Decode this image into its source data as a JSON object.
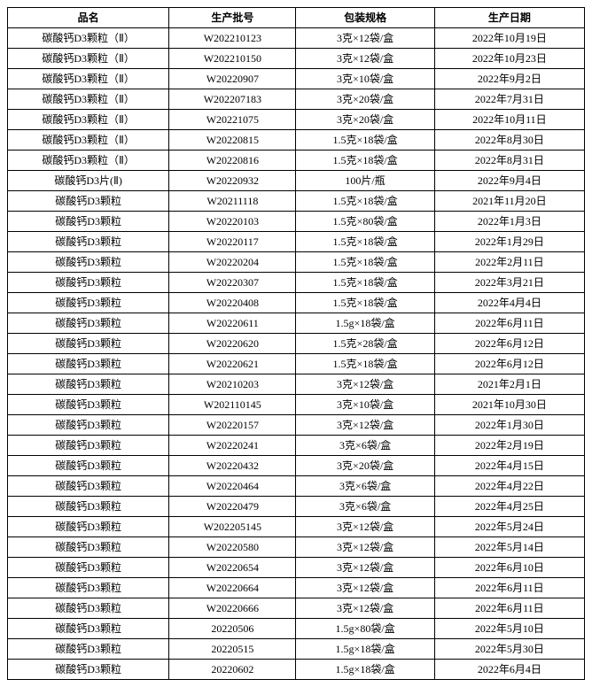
{
  "table": {
    "columns": [
      "品名",
      "生产批号",
      "包装规格",
      "生产日期"
    ],
    "header_fontsize": 12,
    "cell_fontsize": 12,
    "border_color": "#000000",
    "background_color": "#ffffff",
    "column_widths_pct": [
      28,
      22,
      24,
      26
    ],
    "rows": [
      [
        "碳酸钙D3颗粒（Ⅱ）",
        "W202210123",
        "3克×12袋/盒",
        "2022年10月19日"
      ],
      [
        "碳酸钙D3颗粒（Ⅱ）",
        "W202210150",
        "3克×12袋/盒",
        "2022年10月23日"
      ],
      [
        "碳酸钙D3颗粒（Ⅱ）",
        "W20220907",
        "3克×10袋/盒",
        "2022年9月2日"
      ],
      [
        "碳酸钙D3颗粒（Ⅱ）",
        "W202207183",
        "3克×20袋/盒",
        "2022年7月31日"
      ],
      [
        "碳酸钙D3颗粒（Ⅱ）",
        "W20221075",
        "3克×20袋/盒",
        "2022年10月11日"
      ],
      [
        "碳酸钙D3颗粒（Ⅱ）",
        "W20220815",
        "1.5克×18袋/盒",
        "2022年8月30日"
      ],
      [
        "碳酸钙D3颗粒（Ⅱ）",
        "W20220816",
        "1.5克×18袋/盒",
        "2022年8月31日"
      ],
      [
        "碳酸钙D3片(Ⅱ)",
        "W20220932",
        "100片/瓶",
        "2022年9月4日"
      ],
      [
        "碳酸钙D3颗粒",
        "W20211118",
        "1.5克×18袋/盒",
        "2021年11月20日"
      ],
      [
        "碳酸钙D3颗粒",
        "W20220103",
        "1.5克×80袋/盒",
        "2022年1月3日"
      ],
      [
        "碳酸钙D3颗粒",
        "W20220117",
        "1.5克×18袋/盒",
        "2022年1月29日"
      ],
      [
        "碳酸钙D3颗粒",
        "W20220204",
        "1.5克×18袋/盒",
        "2022年2月11日"
      ],
      [
        "碳酸钙D3颗粒",
        "W20220307",
        "1.5克×18袋/盒",
        "2022年3月21日"
      ],
      [
        "碳酸钙D3颗粒",
        "W20220408",
        "1.5克×18袋/盒",
        "2022年4月4日"
      ],
      [
        "碳酸钙D3颗粒",
        "W20220611",
        "1.5g×18袋/盒",
        "2022年6月11日"
      ],
      [
        "碳酸钙D3颗粒",
        "W20220620",
        "1.5克×28袋/盒",
        "2022年6月12日"
      ],
      [
        "碳酸钙D3颗粒",
        "W20220621",
        "1.5克×18袋/盒",
        "2022年6月12日"
      ],
      [
        "碳酸钙D3颗粒",
        "W20210203",
        "3克×12袋/盒",
        "2021年2月1日"
      ],
      [
        "碳酸钙D3颗粒",
        "W202110145",
        "3克×10袋/盒",
        "2021年10月30日"
      ],
      [
        "碳酸钙D3颗粒",
        "W20220157",
        "3克×12袋/盒",
        "2022年1月30日"
      ],
      [
        "碳酸钙D3颗粒",
        "W20220241",
        "3克×6袋/盒",
        "2022年2月19日"
      ],
      [
        "碳酸钙D3颗粒",
        "W20220432",
        "3克×20袋/盒",
        "2022年4月15日"
      ],
      [
        "碳酸钙D3颗粒",
        "W20220464",
        "3克×6袋/盒",
        "2022年4月22日"
      ],
      [
        "碳酸钙D3颗粒",
        "W20220479",
        "3克×6袋/盒",
        "2022年4月25日"
      ],
      [
        "碳酸钙D3颗粒",
        "W202205145",
        "3克×12袋/盒",
        "2022年5月24日"
      ],
      [
        "碳酸钙D3颗粒",
        "W20220580",
        "3克×12袋/盒",
        "2022年5月14日"
      ],
      [
        "碳酸钙D3颗粒",
        "W20220654",
        "3克×12袋/盒",
        "2022年6月10日"
      ],
      [
        "碳酸钙D3颗粒",
        "W20220664",
        "3克×12袋/盒",
        "2022年6月11日"
      ],
      [
        "碳酸钙D3颗粒",
        "W20220666",
        "3克×12袋/盒",
        "2022年6月11日"
      ],
      [
        "碳酸钙D3颗粒",
        "20220506",
        "1.5g×80袋/盒",
        "2022年5月10日"
      ],
      [
        "碳酸钙D3颗粒",
        "20220515",
        "1.5g×18袋/盒",
        "2022年5月30日"
      ],
      [
        "碳酸钙D3颗粒",
        "20220602",
        "1.5g×18袋/盒",
        "2022年6月4日"
      ]
    ]
  }
}
